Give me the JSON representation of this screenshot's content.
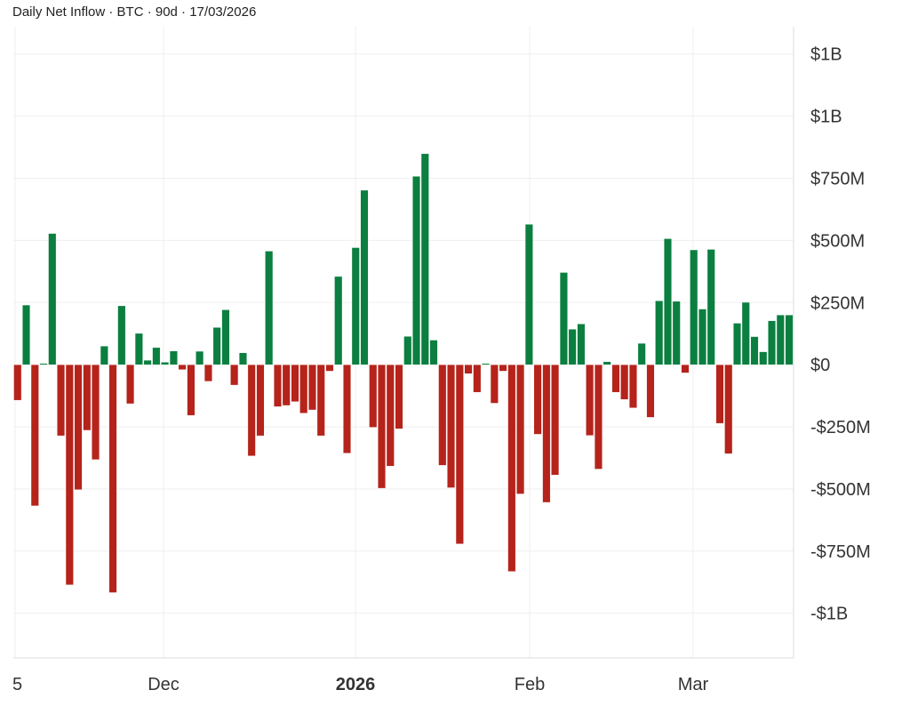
{
  "chart_data": {
    "type": "bar",
    "title": "Daily Net Inflow · BTC · 90d · 17/03/2026",
    "xlabel": "",
    "ylabel": "",
    "ylim": [
      -1180,
      1360
    ],
    "units": "USD millions",
    "grid": true,
    "colors": {
      "positive": "#0b7f40",
      "negative": "#b5231b",
      "grid": "#efefef",
      "axis": "#dddddd"
    },
    "x_ticks": [
      {
        "label": "5",
        "bold": false
      },
      {
        "label": "Dec",
        "bold": false
      },
      {
        "label": "2026",
        "bold": true
      },
      {
        "label": "Feb",
        "bold": false
      },
      {
        "label": "Mar",
        "bold": false
      }
    ],
    "y_ticks": [
      {
        "value": 1250,
        "label": "$1B"
      },
      {
        "value": 1000,
        "label": "$1B"
      },
      {
        "value": 750,
        "label": "$750M"
      },
      {
        "value": 500,
        "label": "$500M"
      },
      {
        "value": 250,
        "label": "$250M"
      },
      {
        "value": 0,
        "label": "$0"
      },
      {
        "value": -250,
        "label": "-$250M"
      },
      {
        "value": -500,
        "label": "-$500M"
      },
      {
        "value": -750,
        "label": "-$750M"
      },
      {
        "value": -1000,
        "label": "-$1B"
      }
    ],
    "values": [
      -143,
      240,
      -568,
      5,
      528,
      -286,
      -886,
      -503,
      -264,
      -382,
      75,
      -917,
      237,
      -157,
      126,
      18,
      69,
      10,
      55,
      -20,
      -204,
      54,
      -67,
      150,
      221,
      -82,
      48,
      -367,
      -286,
      457,
      -169,
      -164,
      -149,
      -195,
      -182,
      -286,
      -26,
      355,
      -356,
      471,
      702,
      -252,
      -497,
      -408,
      -258,
      114,
      758,
      849,
      99,
      -405,
      -495,
      -721,
      -36,
      -111,
      5,
      -155,
      -26,
      -832,
      -520,
      565,
      -280,
      -554,
      -444,
      371,
      143,
      164,
      -285,
      -420,
      12,
      -111,
      -140,
      -174,
      86,
      -212,
      257,
      507,
      255,
      -33,
      462,
      224,
      464,
      -236,
      -358,
      167,
      251,
      113,
      52,
      177,
      200,
      200
    ]
  }
}
